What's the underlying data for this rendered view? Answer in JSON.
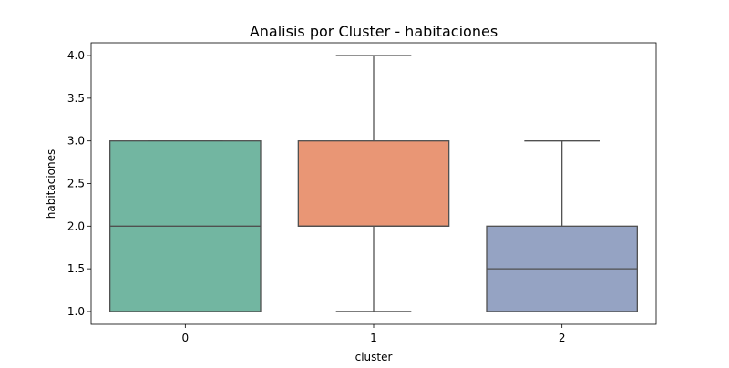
{
  "chart_data": {
    "type": "boxplot",
    "title": "Analisis por Cluster - habitaciones",
    "xlabel": "cluster",
    "ylabel": "habitaciones",
    "categories": [
      "0",
      "1",
      "2"
    ],
    "ylim": [
      0.85,
      4.15
    ],
    "yticks": [
      1.0,
      1.5,
      2.0,
      2.5,
      3.0,
      3.5,
      4.0
    ],
    "ytick_labels": [
      "1.0",
      "1.5",
      "2.0",
      "2.5",
      "3.0",
      "3.5",
      "4.0"
    ],
    "grid": false,
    "legend": "none",
    "boxes": [
      {
        "category": "0",
        "whisker_low": 1.0,
        "q1": 1.0,
        "median": 2.0,
        "q3": 3.0,
        "whisker_high": 3.0,
        "color": "#72b6a1"
      },
      {
        "category": "1",
        "whisker_low": 1.0,
        "q1": 2.0,
        "median": 2.0,
        "q3": 3.0,
        "whisker_high": 4.0,
        "color": "#e99675"
      },
      {
        "category": "2",
        "whisker_low": 1.0,
        "q1": 1.0,
        "median": 1.5,
        "q3": 2.0,
        "whisker_high": 3.0,
        "color": "#95a3c3"
      }
    ],
    "line_color": "#505050"
  }
}
